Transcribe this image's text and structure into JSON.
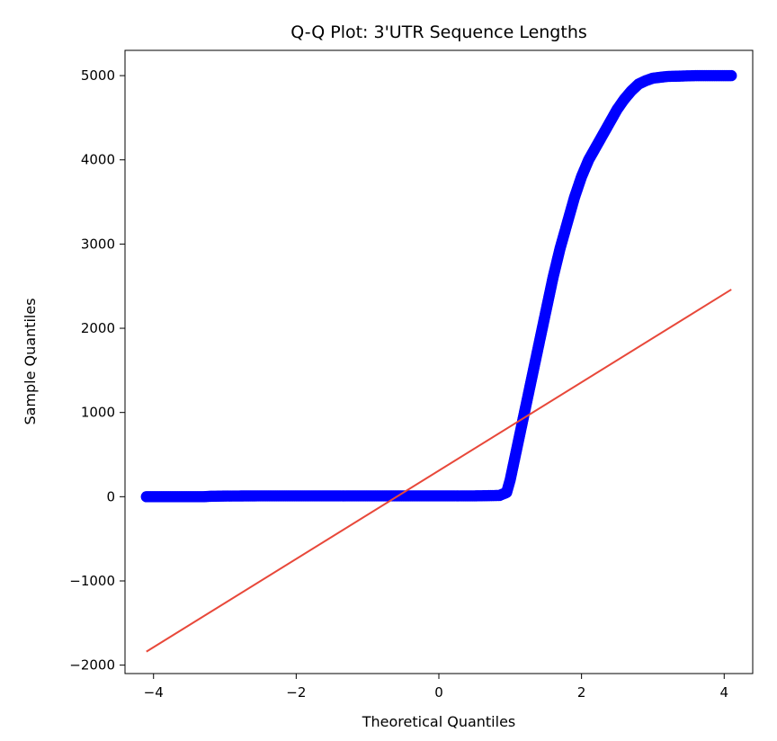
{
  "chart_data": {
    "type": "scatter",
    "title": "Q-Q Plot: 3'UTR Sequence Lengths",
    "xlabel": "Theoretical Quantiles",
    "ylabel": "Sample Quantiles",
    "xlim": [
      -4.4,
      4.4
    ],
    "ylim": [
      -2100,
      5300
    ],
    "xticks": [
      -4,
      -2,
      0,
      2,
      4
    ],
    "xtick_labels": [
      "−4",
      "−2",
      "0",
      "2",
      "4"
    ],
    "yticks": [
      -2000,
      -1000,
      0,
      1000,
      2000,
      3000,
      4000,
      5000
    ],
    "ytick_labels": [
      "−2000",
      "−1000",
      "0",
      "1000",
      "2000",
      "3000",
      "4000",
      "5000"
    ],
    "grid": false,
    "colors": {
      "points": "#0000ff",
      "line": "#e8483a",
      "axes": "#000000"
    },
    "series": [
      {
        "kind": "scatter",
        "points": [
          [
            -4.1,
            0
          ],
          [
            -3.9,
            0
          ],
          [
            -3.8,
            0
          ],
          [
            -3.7,
            0
          ],
          [
            -3.6,
            0
          ],
          [
            -3.5,
            0
          ],
          [
            -3.4,
            0
          ],
          [
            -3.3,
            0
          ],
          [
            -3.2,
            5
          ],
          [
            -3.0,
            8
          ],
          [
            -2.5,
            10
          ],
          [
            -2.0,
            10
          ],
          [
            -1.5,
            10
          ],
          [
            -1.0,
            10
          ],
          [
            -0.5,
            10
          ],
          [
            0.0,
            10
          ],
          [
            0.5,
            10
          ],
          [
            0.85,
            15
          ],
          [
            0.95,
            50
          ],
          [
            1.0,
            200
          ],
          [
            1.05,
            400
          ],
          [
            1.1,
            600
          ],
          [
            1.15,
            800
          ],
          [
            1.2,
            1000
          ],
          [
            1.25,
            1200
          ],
          [
            1.3,
            1400
          ],
          [
            1.35,
            1600
          ],
          [
            1.4,
            1800
          ],
          [
            1.45,
            2000
          ],
          [
            1.5,
            2200
          ],
          [
            1.55,
            2400
          ],
          [
            1.6,
            2600
          ],
          [
            1.7,
            2950
          ],
          [
            1.8,
            3250
          ],
          [
            1.9,
            3550
          ],
          [
            2.0,
            3800
          ],
          [
            2.1,
            4000
          ],
          [
            2.2,
            4150
          ],
          [
            2.3,
            4300
          ],
          [
            2.4,
            4450
          ],
          [
            2.5,
            4600
          ],
          [
            2.6,
            4720
          ],
          [
            2.7,
            4820
          ],
          [
            2.8,
            4900
          ],
          [
            2.9,
            4940
          ],
          [
            3.0,
            4970
          ],
          [
            3.2,
            4990
          ],
          [
            3.4,
            4995
          ],
          [
            3.6,
            5000
          ],
          [
            3.8,
            5000
          ],
          [
            4.1,
            5000
          ]
        ]
      },
      {
        "kind": "line",
        "points": [
          [
            -4.1,
            -1840
          ],
          [
            4.1,
            2460
          ]
        ]
      }
    ]
  }
}
